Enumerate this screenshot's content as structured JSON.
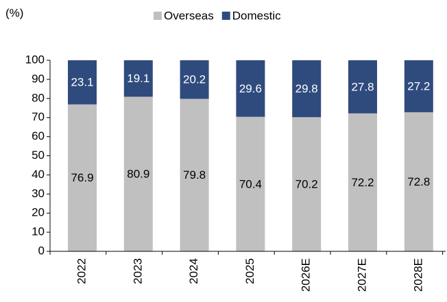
{
  "chart_data": {
    "type": "stacked_bar",
    "unit_label": "(%)",
    "categories": [
      "2022",
      "2023",
      "2024",
      "2025",
      "2026E",
      "2027E",
      "2028E"
    ],
    "series": [
      {
        "name": "Overseas",
        "color": "#c0c0c0",
        "label_color": "#000000",
        "values": [
          76.9,
          80.9,
          79.8,
          70.4,
          70.2,
          72.2,
          72.8
        ]
      },
      {
        "name": "Domestic",
        "color": "#2f4b7e",
        "label_color": "#ffffff",
        "values": [
          23.1,
          19.1,
          20.2,
          29.6,
          29.8,
          27.8,
          27.2
        ]
      }
    ],
    "ylim": [
      0,
      100
    ],
    "yticks": [
      0,
      10,
      20,
      30,
      40,
      50,
      60,
      70,
      80,
      90,
      100
    ],
    "legend": "top"
  }
}
